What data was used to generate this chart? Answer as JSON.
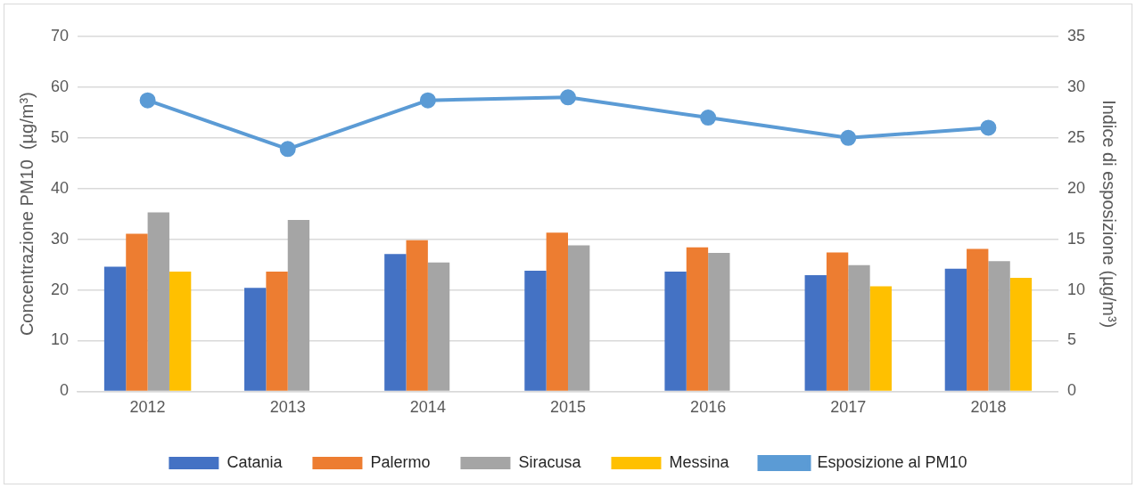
{
  "chart_data": {
    "type": "bar",
    "categories": [
      "2012",
      "2013",
      "2014",
      "2015",
      "2016",
      "2017",
      "2018"
    ],
    "ylabel": "Concentrazione PM10  (µg/m³)",
    "y2label": "Indice di esposizione (µg/m³)",
    "ylim": [
      0,
      70
    ],
    "yticks": [
      0,
      10,
      20,
      30,
      40,
      50,
      60,
      70
    ],
    "y2lim": [
      0,
      35
    ],
    "y2ticks": [
      0,
      5,
      10,
      15,
      20,
      25,
      30,
      35
    ],
    "grid": "y",
    "legend": "bottom",
    "series": [
      {
        "name": "Catania",
        "color": "#4472c4",
        "values": [
          24.6,
          20.4,
          27.1,
          23.8,
          23.6,
          22.9,
          24.2
        ]
      },
      {
        "name": "Palermo",
        "color": "#ed7d31",
        "values": [
          31.1,
          23.6,
          29.8,
          31.3,
          28.4,
          27.4,
          28.1
        ]
      },
      {
        "name": "Siracusa",
        "color": "#a5a5a5",
        "values": [
          35.3,
          33.8,
          25.4,
          28.8,
          27.3,
          24.9,
          25.7
        ]
      },
      {
        "name": "Messina",
        "color": "#ffc000",
        "values": [
          23.6,
          null,
          null,
          null,
          null,
          20.7,
          22.4
        ]
      },
      {
        "name": "Esposizione al PM10",
        "type": "line",
        "axis": "y2",
        "color": "#5b9bd5",
        "marker": "circle",
        "values": [
          28.7,
          23.9,
          28.7,
          29.0,
          27.0,
          25.0,
          26.0
        ]
      }
    ]
  }
}
